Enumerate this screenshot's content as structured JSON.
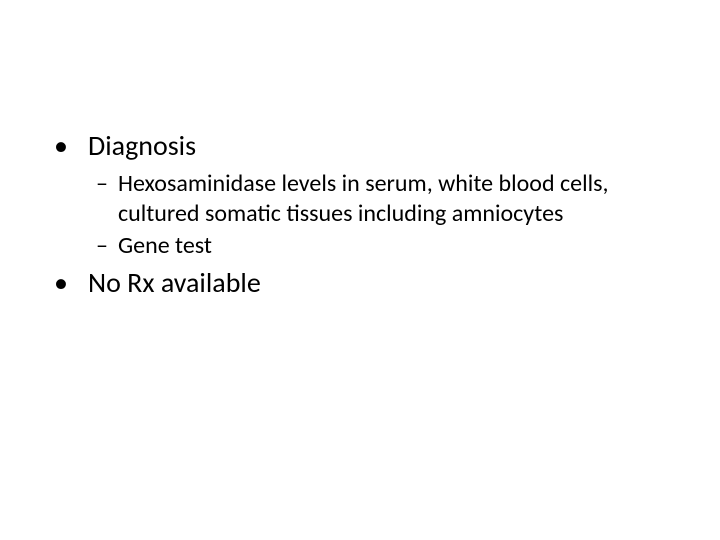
{
  "slide": {
    "background_color": "#ffffff",
    "text_color": "#000000",
    "font_family": "Calibri",
    "bullets": [
      {
        "marker": "•",
        "text": "Diagnosis",
        "fontsize_pt": 28,
        "sub": [
          {
            "marker": "–",
            "text": "Hexosaminidase levels in serum, white blood cells, cultured somatic tissues including amniocytes",
            "fontsize_pt": 24
          },
          {
            "marker": "–",
            "text": "Gene test",
            "fontsize_pt": 24
          }
        ]
      },
      {
        "marker": "•",
        "text": "No Rx available",
        "fontsize_pt": 28,
        "sub": []
      }
    ]
  }
}
